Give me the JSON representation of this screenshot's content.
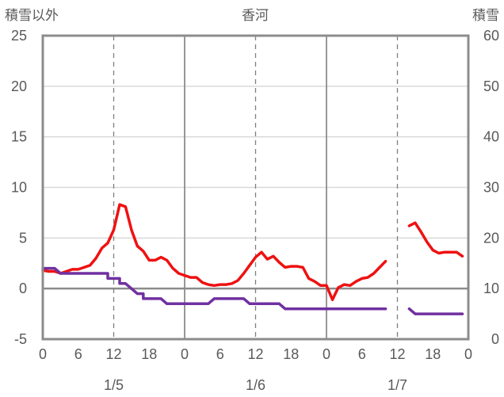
{
  "chart_data": {
    "type": "line",
    "title": "香河",
    "ylabel_left": "積雪以外",
    "ylabel_right": "積雪",
    "y_left": {
      "min": -5,
      "max": 25,
      "ticks": [
        25,
        20,
        15,
        10,
        5,
        0,
        -5
      ]
    },
    "y_right": {
      "min": 0,
      "max": 60,
      "ticks": [
        60,
        50,
        40,
        30,
        20,
        10,
        0
      ]
    },
    "x": {
      "min": 0,
      "max": 72,
      "unit": "hours",
      "ticks": [
        0,
        6,
        12,
        18,
        24,
        30,
        36,
        42,
        48,
        54,
        60,
        66,
        72
      ],
      "tick_labels": [
        "0",
        "6",
        "12",
        "18",
        "0",
        "6",
        "12",
        "18",
        "0",
        "6",
        "12",
        "18",
        "0"
      ]
    },
    "dates": [
      {
        "x": 12,
        "label": "1/5"
      },
      {
        "x": 36,
        "label": "1/6"
      },
      {
        "x": 60,
        "label": "1/7"
      }
    ],
    "day_lines": [
      24,
      48
    ],
    "noon_lines": [
      12,
      36,
      60
    ],
    "grid": "horizontal",
    "series": [
      {
        "axis": "left",
        "color": "#ee1111",
        "segments": [
          [
            [
              0,
              1.8
            ],
            [
              1,
              1.7
            ],
            [
              2,
              1.7
            ],
            [
              3,
              1.5
            ],
            [
              4,
              1.7
            ],
            [
              5,
              1.9
            ],
            [
              6,
              1.9
            ],
            [
              7,
              2.1
            ],
            [
              8,
              2.3
            ],
            [
              9,
              3.0
            ],
            [
              10,
              4.0
            ],
            [
              11,
              4.5
            ],
            [
              12,
              5.8
            ],
            [
              13,
              8.3
            ],
            [
              14,
              8.1
            ],
            [
              15,
              5.8
            ],
            [
              16,
              4.2
            ],
            [
              17,
              3.7
            ],
            [
              18,
              2.8
            ],
            [
              19,
              2.8
            ],
            [
              20,
              3.1
            ],
            [
              21,
              2.8
            ],
            [
              22,
              2.0
            ],
            [
              23,
              1.5
            ],
            [
              24,
              1.3
            ],
            [
              25,
              1.1
            ],
            [
              26,
              1.1
            ],
            [
              27,
              0.6
            ],
            [
              28,
              0.4
            ],
            [
              29,
              0.3
            ],
            [
              30,
              0.4
            ],
            [
              31,
              0.4
            ],
            [
              32,
              0.5
            ],
            [
              33,
              0.8
            ],
            [
              34,
              1.5
            ],
            [
              35,
              2.3
            ],
            [
              36,
              3.1
            ],
            [
              37,
              3.6
            ],
            [
              38,
              2.9
            ],
            [
              39,
              3.2
            ],
            [
              40,
              2.6
            ],
            [
              41,
              2.1
            ],
            [
              42,
              2.2
            ],
            [
              43,
              2.2
            ],
            [
              44,
              2.1
            ],
            [
              45,
              1.0
            ],
            [
              46,
              0.7
            ],
            [
              47,
              0.3
            ],
            [
              48,
              0.3
            ],
            [
              49,
              -1.1
            ],
            [
              50,
              0.1
            ],
            [
              51,
              0.4
            ],
            [
              52,
              0.3
            ],
            [
              53,
              0.7
            ],
            [
              54,
              1.0
            ],
            [
              55,
              1.1
            ],
            [
              56,
              1.5
            ],
            [
              57,
              2.1
            ],
            [
              58,
              2.7
            ]
          ],
          [
            [
              62,
              6.2
            ],
            [
              63,
              6.5
            ],
            [
              64,
              5.6
            ],
            [
              65,
              4.6
            ],
            [
              66,
              3.8
            ],
            [
              67,
              3.5
            ],
            [
              68,
              3.6
            ],
            [
              69,
              3.6
            ],
            [
              70,
              3.6
            ],
            [
              71,
              3.2
            ]
          ]
        ]
      },
      {
        "axis": "right",
        "color": "#7030a0",
        "segments": [
          [
            [
              0,
              14
            ],
            [
              2,
              14
            ],
            [
              3,
              13
            ],
            [
              11,
              13
            ],
            [
              11,
              12
            ],
            [
              13,
              12
            ],
            [
              13,
              11
            ],
            [
              14,
              11
            ],
            [
              15,
              10
            ],
            [
              16,
              9
            ],
            [
              17,
              9
            ],
            [
              17,
              8
            ],
            [
              20,
              8
            ],
            [
              21,
              7
            ],
            [
              28,
              7
            ],
            [
              29,
              8
            ],
            [
              34,
              8
            ],
            [
              35,
              7
            ],
            [
              40,
              7
            ],
            [
              41,
              6
            ],
            [
              58,
              6
            ]
          ],
          [
            [
              62,
              6
            ],
            [
              63,
              5
            ],
            [
              71,
              5
            ]
          ]
        ]
      }
    ]
  }
}
